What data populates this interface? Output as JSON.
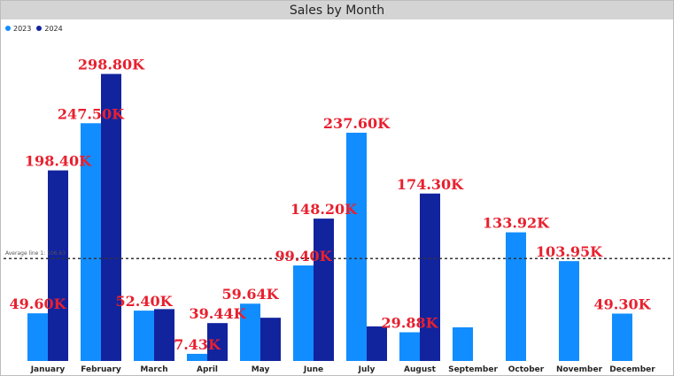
{
  "chart_data": {
    "type": "bar",
    "title": "Sales by Month",
    "categories": [
      "January",
      "February",
      "March",
      "April",
      "May",
      "June",
      "July",
      "August",
      "September",
      "October",
      "November",
      "December"
    ],
    "series": [
      {
        "name": "2023",
        "color": "#118dff",
        "values": [
          49.6,
          247.5,
          52.4,
          7.43,
          59.64,
          99.4,
          237.6,
          29.88,
          35.0,
          133.92,
          103.95,
          49.3
        ],
        "labels": [
          "49.60K",
          "247.50K",
          "52.40K",
          "7.43K",
          "59.64K",
          "99.40K",
          "237.60K",
          "29.88K",
          "",
          "133.92K",
          "103.95K",
          "49.30K"
        ]
      },
      {
        "name": "2024",
        "color": "#12239e",
        "values": [
          198.4,
          298.8,
          54.0,
          39.44,
          45.0,
          148.2,
          36.0,
          174.3,
          null,
          null,
          null,
          null
        ],
        "labels": [
          "198.40K",
          "298.80K",
          "",
          "39.44K",
          "",
          "148.20K",
          "",
          "174.30K",
          "",
          "",
          "",
          ""
        ]
      }
    ],
    "ylim": [
      0,
      315
    ],
    "average_line": {
      "label": "Average line 1: 106.63",
      "value": 106.63
    },
    "legend_position": "top-left",
    "grid": false
  }
}
